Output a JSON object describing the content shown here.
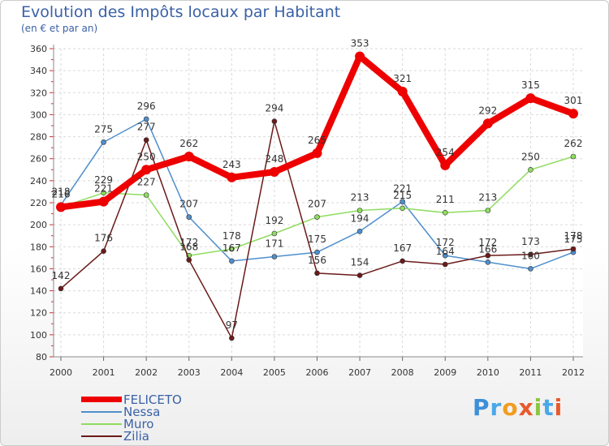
{
  "title": "Evolution des Impôts locaux par Habitant",
  "subtitle": "(en € et par an)",
  "logo_text": "Proxiti",
  "colors": {
    "FELICETO": "#ee0000",
    "Nessa": "#4f8fcc",
    "Muro": "#8fdc5f",
    "Zilia": "#6b1a1a"
  },
  "chart_data": {
    "type": "line",
    "x": [
      2000,
      2001,
      2002,
      2003,
      2004,
      2005,
      2006,
      2007,
      2008,
      2009,
      2010,
      2011,
      2012
    ],
    "ylim": [
      80,
      360
    ],
    "yticks": [
      80,
      100,
      120,
      140,
      160,
      180,
      200,
      220,
      240,
      260,
      280,
      300,
      320,
      340,
      360
    ],
    "grid": true,
    "legend_position": "bottom-left",
    "series": [
      {
        "name": "FELICETO",
        "values": [
          216,
          221,
          250,
          262,
          243,
          248,
          265,
          353,
          321,
          254,
          292,
          315,
          301
        ]
      },
      {
        "name": "Nessa",
        "values": [
          218,
          275,
          296,
          207,
          167,
          171,
          175,
          194,
          221,
          172,
          166,
          160,
          175
        ]
      },
      {
        "name": "Muro",
        "values": [
          216,
          229,
          227,
          172,
          178,
          192,
          207,
          213,
          215,
          211,
          213,
          250,
          262
        ]
      },
      {
        "name": "Zilia",
        "values": [
          142,
          176,
          277,
          168,
          97,
          294,
          156,
          154,
          167,
          164,
          172,
          173,
          178
        ]
      }
    ]
  }
}
